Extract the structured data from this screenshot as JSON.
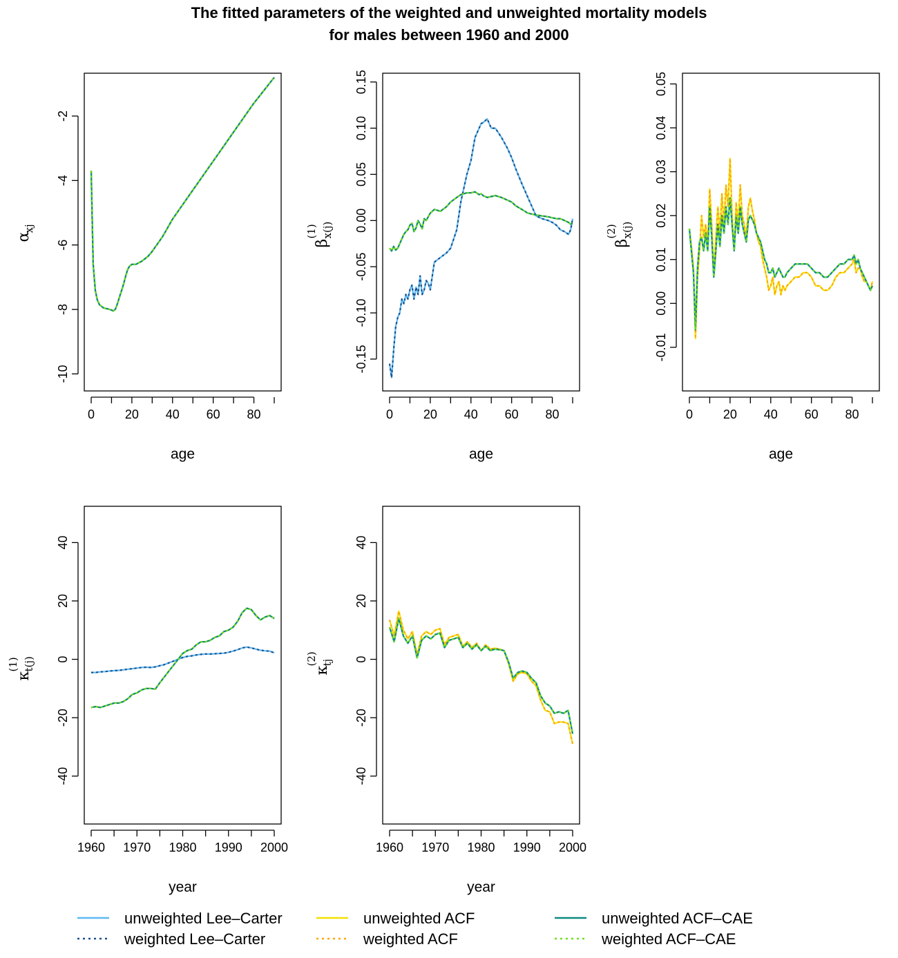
{
  "figure": {
    "title_line1": "The fitted parameters of the weighted and unweighted mortality models",
    "title_line2": "for males between 1960 and 2000"
  },
  "colors": {
    "unweighted_lee_carter": "#5cb8f2",
    "weighted_lee_carter": "#1a4f8a",
    "unweighted_acf": "#f2e000",
    "weighted_acf": "#ffa500",
    "unweighted_acf_cae": "#0d8a80",
    "weighted_acf_cae": "#6ce01c"
  },
  "legend": [
    {
      "key": "unweighted_lee_carter",
      "label": "unweighted Lee–Carter",
      "dash": false
    },
    {
      "key": "weighted_lee_carter",
      "label": "weighted Lee–Carter",
      "dash": true
    },
    {
      "key": "unweighted_acf",
      "label": "unweighted ACF",
      "dash": false
    },
    {
      "key": "weighted_acf",
      "label": "weighted ACF",
      "dash": true
    },
    {
      "key": "unweighted_acf_cae",
      "label": "unweighted ACF–CAE",
      "dash": false
    },
    {
      "key": "weighted_acf_cae",
      "label": "weighted ACF–CAE",
      "dash": true
    }
  ],
  "chart_data": [
    {
      "id": "alpha",
      "type": "line",
      "xlabel": "age",
      "ylabel": {
        "base": "α",
        "sub": "xj",
        "sup": ""
      },
      "xlim": [
        0,
        90
      ],
      "ylim": [
        -10.4,
        -0.8
      ],
      "xticks": [
        0,
        20,
        40,
        60,
        80
      ],
      "yticks": [
        -10,
        -8,
        -6,
        -4,
        -2
      ],
      "ytick_labels": [
        "-10",
        "-8",
        "-6",
        "-4",
        "-2"
      ],
      "x": [
        0,
        1,
        2,
        3,
        4,
        5,
        6,
        7,
        8,
        9,
        10,
        11,
        12,
        13,
        14,
        15,
        16,
        17,
        18,
        19,
        20,
        22,
        25,
        28,
        30,
        35,
        40,
        45,
        50,
        55,
        60,
        65,
        70,
        75,
        80,
        85,
        90
      ],
      "series": [
        {
          "keys": [
            "unweighted_lee_carter",
            "weighted_lee_carter",
            "unweighted_acf",
            "weighted_acf",
            "unweighted_acf_cae",
            "weighted_acf_cae"
          ],
          "values": [
            -3.7,
            -6.6,
            -7.4,
            -7.7,
            -7.85,
            -7.9,
            -7.95,
            -7.97,
            -7.98,
            -8.0,
            -8.02,
            -8.05,
            -7.98,
            -7.8,
            -7.6,
            -7.4,
            -7.2,
            -6.95,
            -6.75,
            -6.65,
            -6.6,
            -6.6,
            -6.5,
            -6.35,
            -6.2,
            -5.75,
            -5.2,
            -4.75,
            -4.3,
            -3.85,
            -3.4,
            -2.95,
            -2.5,
            -2.05,
            -1.6,
            -1.2,
            -0.8
          ]
        }
      ]
    },
    {
      "id": "beta1",
      "type": "line",
      "xlabel": "age",
      "ylabel": {
        "base": "β",
        "sub": "x(j)",
        "sup": "(1)"
      },
      "xlim": [
        0,
        90
      ],
      "ylim": [
        -0.18,
        0.155
      ],
      "xticks": [
        0,
        20,
        40,
        60,
        80
      ],
      "yticks": [
        -0.15,
        -0.1,
        -0.05,
        0.0,
        0.05,
        0.1,
        0.15
      ],
      "ytick_labels": [
        "-0.15",
        "-0.10",
        "-0.05",
        "0.00",
        "0.05",
        "0.10",
        "0.15"
      ],
      "x": [
        0,
        1,
        2,
        3,
        4,
        5,
        6,
        7,
        8,
        9,
        10,
        11,
        12,
        13,
        14,
        15,
        16,
        17,
        18,
        19,
        20,
        22,
        25,
        28,
        30,
        33,
        35,
        38,
        40,
        42,
        44,
        45,
        46,
        48,
        50,
        52,
        55,
        58,
        60,
        62,
        65,
        68,
        70,
        72,
        75,
        78,
        80,
        82,
        84,
        86,
        88,
        89,
        90
      ],
      "series": [
        {
          "keys": [
            "unweighted_lee_carter",
            "weighted_lee_carter"
          ],
          "values": [
            -0.155,
            -0.17,
            -0.14,
            -0.115,
            -0.105,
            -0.1,
            -0.085,
            -0.09,
            -0.08,
            -0.085,
            -0.075,
            -0.07,
            -0.085,
            -0.072,
            -0.08,
            -0.06,
            -0.08,
            -0.075,
            -0.065,
            -0.068,
            -0.075,
            -0.045,
            -0.04,
            -0.035,
            -0.03,
            -0.01,
            0.02,
            0.05,
            0.065,
            0.09,
            0.1,
            0.105,
            0.106,
            0.11,
            0.1,
            0.1,
            0.09,
            0.078,
            0.068,
            0.056,
            0.04,
            0.025,
            0.015,
            0.005,
            0.002,
            0.0,
            -0.002,
            -0.005,
            -0.01,
            -0.012,
            -0.015,
            -0.01,
            0.002
          ]
        },
        {
          "keys": [
            "unweighted_acf",
            "weighted_acf",
            "unweighted_acf_cae",
            "weighted_acf_cae"
          ],
          "values": [
            -0.03,
            -0.033,
            -0.028,
            -0.032,
            -0.03,
            -0.025,
            -0.02,
            -0.015,
            -0.012,
            -0.01,
            -0.005,
            -0.003,
            -0.012,
            -0.008,
            0.0,
            -0.004,
            -0.009,
            0.002,
            0.0,
            0.004,
            0.008,
            0.012,
            0.01,
            0.015,
            0.02,
            0.025,
            0.028,
            0.03,
            0.03,
            0.031,
            0.028,
            0.029,
            0.027,
            0.025,
            0.026,
            0.027,
            0.025,
            0.022,
            0.02,
            0.016,
            0.012,
            0.008,
            0.007,
            0.006,
            0.005,
            0.004,
            0.003,
            0.002,
            0.002,
            0.0,
            -0.002,
            -0.004,
            -0.003
          ]
        }
      ]
    },
    {
      "id": "beta2",
      "type": "line",
      "xlabel": "age",
      "ylabel": {
        "base": "β",
        "sub": "x(j)",
        "sup": "(2)"
      },
      "xlim": [
        0,
        90
      ],
      "ylim": [
        -0.019,
        0.0515
      ],
      "xticks": [
        0,
        20,
        40,
        60,
        80
      ],
      "yticks": [
        -0.01,
        0.0,
        0.01,
        0.02,
        0.03,
        0.04,
        0.05
      ],
      "ytick_labels": [
        "-0.01",
        "0.00",
        "0.01",
        "0.02",
        "0.03",
        "0.04",
        "0.05"
      ],
      "x": [
        0,
        1,
        2,
        3,
        4,
        5,
        6,
        7,
        8,
        9,
        10,
        11,
        12,
        13,
        14,
        15,
        16,
        17,
        18,
        19,
        20,
        21,
        22,
        23,
        24,
        25,
        26,
        27,
        28,
        29,
        30,
        31,
        32,
        33,
        34,
        35,
        36,
        37,
        38,
        39,
        40,
        41,
        42,
        43,
        44,
        45,
        46,
        47,
        48,
        50,
        52,
        54,
        56,
        58,
        60,
        62,
        64,
        66,
        68,
        70,
        72,
        74,
        76,
        78,
        80,
        81,
        82,
        83,
        84,
        85,
        86,
        87,
        88,
        89,
        90
      ],
      "series": [
        {
          "keys": [
            "unweighted_acf",
            "weighted_acf"
          ],
          "values": [
            0.017,
            0.013,
            0.008,
            -0.008,
            0.006,
            0.012,
            0.02,
            0.015,
            0.018,
            0.013,
            0.026,
            0.018,
            0.007,
            0.015,
            0.022,
            0.016,
            0.025,
            0.018,
            0.027,
            0.022,
            0.033,
            0.02,
            0.012,
            0.023,
            0.018,
            0.027,
            0.02,
            0.018,
            0.015,
            0.022,
            0.024,
            0.021,
            0.019,
            0.016,
            0.014,
            0.013,
            0.01,
            0.008,
            0.006,
            0.003,
            0.004,
            0.006,
            0.002,
            0.004,
            0.005,
            0.002,
            0.004,
            0.003,
            0.004,
            0.005,
            0.006,
            0.006,
            0.007,
            0.007,
            0.006,
            0.004,
            0.004,
            0.003,
            0.003,
            0.004,
            0.006,
            0.007,
            0.007,
            0.008,
            0.009,
            0.01,
            0.007,
            0.008,
            0.008,
            0.006,
            0.005,
            0.005,
            0.004,
            0.003,
            0.005
          ]
        },
        {
          "keys": [
            "unweighted_lee_carter",
            "weighted_lee_carter",
            "unweighted_acf_cae",
            "weighted_acf_cae"
          ],
          "values": [
            0.017,
            0.012,
            0.007,
            -0.006,
            0.008,
            0.014,
            0.015,
            0.012,
            0.016,
            0.012,
            0.022,
            0.015,
            0.006,
            0.012,
            0.018,
            0.013,
            0.02,
            0.016,
            0.022,
            0.018,
            0.024,
            0.018,
            0.012,
            0.02,
            0.016,
            0.022,
            0.018,
            0.016,
            0.014,
            0.019,
            0.02,
            0.019,
            0.018,
            0.016,
            0.015,
            0.014,
            0.012,
            0.01,
            0.009,
            0.007,
            0.007,
            0.008,
            0.006,
            0.007,
            0.008,
            0.007,
            0.006,
            0.006,
            0.007,
            0.008,
            0.009,
            0.009,
            0.009,
            0.009,
            0.008,
            0.007,
            0.007,
            0.006,
            0.006,
            0.007,
            0.008,
            0.009,
            0.009,
            0.01,
            0.01,
            0.011,
            0.009,
            0.01,
            0.008,
            0.007,
            0.006,
            0.005,
            0.004,
            0.003,
            0.004
          ]
        }
      ]
    },
    {
      "id": "kappa1",
      "type": "line",
      "xlabel": "year",
      "ylabel": {
        "base": "κ",
        "sub": "t(j)",
        "sup": "(1)"
      },
      "xlim": [
        1960,
        2000
      ],
      "ylim": [
        -55,
        51
      ],
      "xticks": [
        1960,
        1970,
        1980,
        1990,
        2000
      ],
      "yticks": [
        -40,
        -20,
        0,
        20,
        40
      ],
      "ytick_labels": [
        "-40",
        "-20",
        "0",
        "20",
        "40"
      ],
      "x": [
        1960,
        1961,
        1962,
        1963,
        1964,
        1965,
        1966,
        1967,
        1968,
        1969,
        1970,
        1971,
        1972,
        1973,
        1974,
        1975,
        1976,
        1977,
        1978,
        1979,
        1980,
        1981,
        1982,
        1983,
        1984,
        1985,
        1986,
        1987,
        1988,
        1989,
        1990,
        1991,
        1992,
        1993,
        1994,
        1995,
        1996,
        1997,
        1998,
        1999,
        2000
      ],
      "series": [
        {
          "keys": [
            "unweighted_lee_carter",
            "weighted_lee_carter"
          ],
          "values": [
            -4.5,
            -4.5,
            -4.3,
            -4.2,
            -4.0,
            -3.9,
            -3.8,
            -3.6,
            -3.4,
            -3.2,
            -3.0,
            -2.8,
            -2.7,
            -2.8,
            -2.6,
            -2.2,
            -1.8,
            -1.2,
            -0.6,
            0.0,
            0.6,
            1.0,
            1.2,
            1.5,
            1.7,
            1.8,
            1.8,
            1.9,
            2.0,
            2.1,
            2.4,
            2.8,
            3.3,
            3.9,
            4.2,
            3.9,
            3.5,
            3.1,
            2.9,
            2.8,
            2.2
          ]
        },
        {
          "keys": [
            "unweighted_acf",
            "weighted_acf",
            "unweighted_acf_cae",
            "weighted_acf_cae"
          ],
          "values": [
            -16.5,
            -16.2,
            -16.5,
            -16.0,
            -15.5,
            -15.0,
            -15.0,
            -14.5,
            -13.5,
            -12.0,
            -11.5,
            -10.5,
            -10.0,
            -10.0,
            -10.2,
            -8.0,
            -6.0,
            -4.0,
            -2.0,
            0.0,
            2.0,
            3.0,
            3.5,
            5.0,
            6.0,
            6.0,
            6.5,
            7.5,
            8.0,
            9.5,
            10.0,
            11.0,
            13.0,
            16.0,
            17.5,
            17.0,
            15.0,
            13.5,
            14.5,
            15.0,
            14.0
          ]
        }
      ]
    },
    {
      "id": "kappa2",
      "type": "line",
      "xlabel": "year",
      "ylabel": {
        "base": "κ",
        "sub": "tj",
        "sup": "(2)"
      },
      "xlim": [
        1960,
        2000
      ],
      "ylim": [
        -55,
        51
      ],
      "xticks": [
        1960,
        1970,
        1980,
        1990,
        2000
      ],
      "yticks": [
        -40,
        -20,
        0,
        20,
        40
      ],
      "ytick_labels": [
        "-40",
        "-20",
        "0",
        "20",
        "40"
      ],
      "x": [
        1960,
        1961,
        1962,
        1963,
        1964,
        1965,
        1966,
        1967,
        1968,
        1969,
        1970,
        1971,
        1972,
        1973,
        1974,
        1975,
        1976,
        1977,
        1978,
        1979,
        1980,
        1981,
        1982,
        1983,
        1984,
        1985,
        1986,
        1987,
        1988,
        1989,
        1990,
        1991,
        1992,
        1993,
        1994,
        1995,
        1996,
        1997,
        1998,
        1999,
        2000
      ],
      "series": [
        {
          "keys": [
            "unweighted_acf",
            "weighted_acf"
          ],
          "values": [
            13.5,
            8.0,
            16.5,
            10.0,
            7.0,
            9.5,
            1.5,
            8.0,
            9.5,
            8.5,
            10.0,
            10.5,
            5.0,
            7.5,
            8.0,
            8.5,
            4.5,
            6.0,
            4.0,
            5.5,
            3.0,
            5.0,
            3.5,
            3.8,
            3.5,
            3.0,
            -1.5,
            -7.5,
            -5.0,
            -4.5,
            -5.0,
            -7.5,
            -9.0,
            -14.0,
            -17.5,
            -18.0,
            -22.0,
            -21.5,
            -21.5,
            -22.0,
            -29.0
          ]
        },
        {
          "keys": [
            "unweighted_lee_carter",
            "weighted_lee_carter",
            "unweighted_acf_cae",
            "weighted_acf_cae"
          ],
          "values": [
            11.0,
            6.0,
            14.0,
            8.0,
            5.5,
            8.0,
            0.5,
            6.5,
            8.0,
            7.0,
            8.5,
            9.0,
            4.0,
            6.5,
            7.0,
            7.5,
            4.0,
            5.5,
            3.5,
            5.0,
            3.0,
            4.5,
            3.0,
            3.5,
            3.3,
            3.0,
            -1.0,
            -6.5,
            -4.5,
            -4.0,
            -4.5,
            -6.5,
            -8.0,
            -12.5,
            -15.0,
            -16.0,
            -18.5,
            -18.0,
            -18.5,
            -17.5,
            -25.5
          ]
        }
      ]
    }
  ]
}
